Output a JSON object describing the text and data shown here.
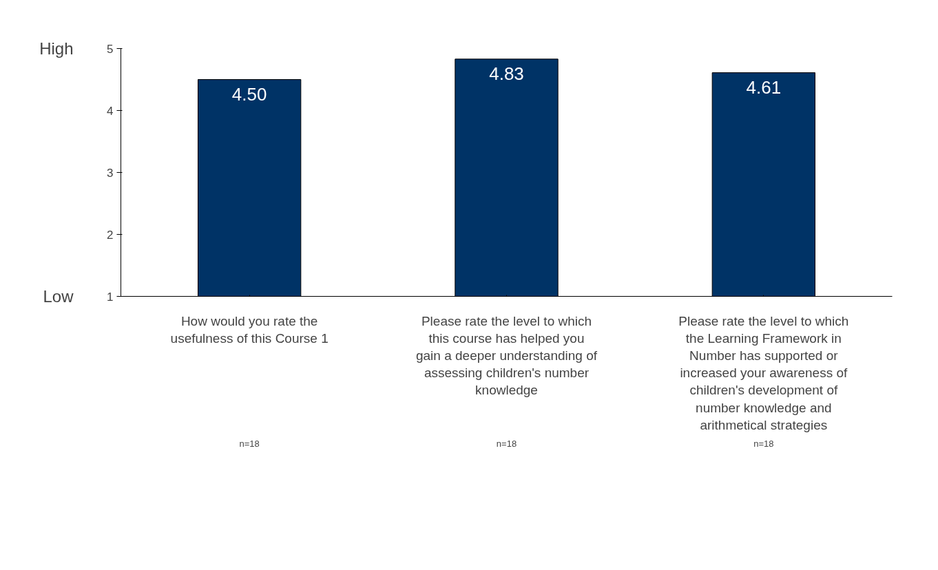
{
  "chart_data": {
    "type": "bar",
    "categories": [
      "How would you rate the usefulness of this Course 1",
      "Please rate the level to which this course has helped you gain a deeper understanding of assessing children's number knowledge",
      "Please rate the level to which the Learning Framework in Number has supported or increased your awareness of children's development of number knowledge and arithmetical strategies"
    ],
    "values": [
      4.5,
      4.83,
      4.61
    ],
    "value_labels": [
      "4.50",
      "4.83",
      "4.61"
    ],
    "color": "#003366",
    "ylim": [
      1,
      5
    ],
    "yticks": [
      1,
      2,
      3,
      4,
      5
    ],
    "grid": false,
    "annotations": [
      "n=18",
      "n=18",
      "n=18",
      "High",
      "Low"
    ]
  }
}
